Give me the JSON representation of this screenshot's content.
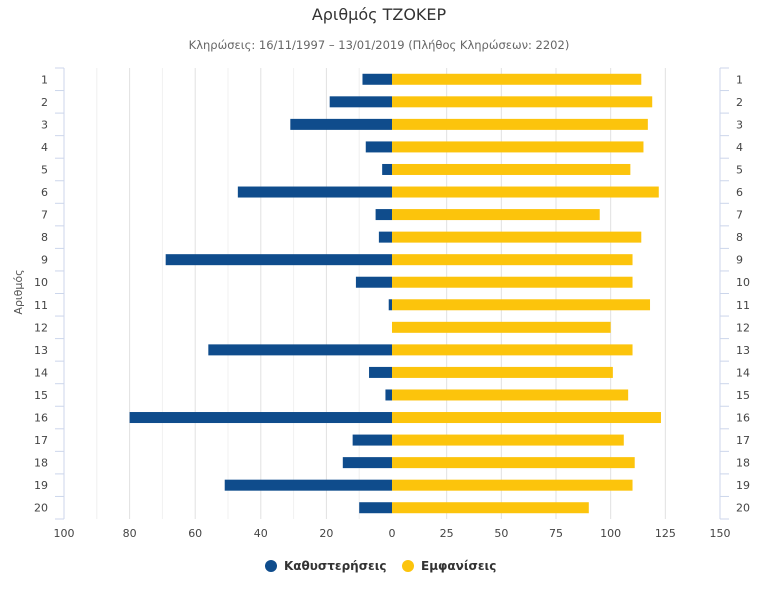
{
  "chart_data": {
    "type": "bar",
    "orientation": "horizontal",
    "title": "Αριθμός ΤΖΟΚΕΡ",
    "subtitle": "Κληρώσεις: 16/11/1997 – 13/01/2019 (Πλήθος Κληρώσεων: 2202)",
    "ylabel": "Αριθμός",
    "xlabel": "",
    "categories": [
      "1",
      "2",
      "3",
      "4",
      "5",
      "6",
      "7",
      "8",
      "9",
      "10",
      "11",
      "12",
      "13",
      "14",
      "15",
      "16",
      "17",
      "18",
      "19",
      "20"
    ],
    "series": [
      {
        "name": "Καθυστερήσεις",
        "color": "#0f4c8c",
        "direction": "left",
        "xlim": [
          0,
          100
        ],
        "values": [
          9,
          19,
          31,
          8,
          3,
          47,
          5,
          4,
          69,
          11,
          1,
          0,
          56,
          7,
          2,
          80,
          12,
          15,
          51,
          10
        ]
      },
      {
        "name": "Εμφανίσεις",
        "color": "#fcc40c",
        "direction": "right",
        "xlim": [
          0,
          150
        ],
        "values": [
          114,
          119,
          117,
          115,
          109,
          122,
          95,
          114,
          110,
          110,
          118,
          100,
          110,
          101,
          108,
          123,
          106,
          111,
          110,
          90
        ]
      }
    ],
    "xticks_left": [
      "100",
      "80",
      "60",
      "40",
      "20",
      "0"
    ],
    "xticks_right": [
      "25",
      "50",
      "75",
      "100",
      "125",
      "150"
    ],
    "grid": true,
    "legend_position": "bottom-center"
  }
}
